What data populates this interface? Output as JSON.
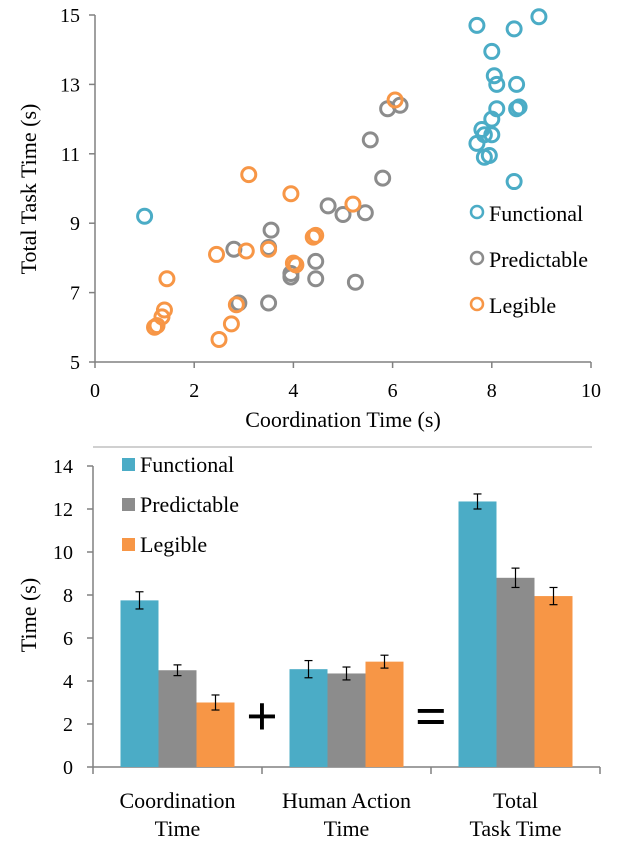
{
  "colors": {
    "functional": "#4bacc6",
    "predictable": "#8c8c8c",
    "legible": "#f79646",
    "axis": "#808080",
    "error_bar": "#000000"
  },
  "chart_data": [
    {
      "type": "scatter",
      "title": "",
      "xlabel": "Coordination Time (s)",
      "ylabel": "Total Task Time (s)",
      "xlim": [
        0,
        10
      ],
      "ylim": [
        5,
        15
      ],
      "xticks": [
        "0",
        "2",
        "4",
        "6",
        "8",
        "10"
      ],
      "yticks": [
        "5",
        "7",
        "9",
        "11",
        "13",
        "15"
      ],
      "grid": false,
      "legend_position": "right",
      "series": [
        {
          "name": "Functional",
          "color_key": "functional",
          "points": [
            [
              1.0,
              9.2
            ],
            [
              7.7,
              14.7
            ],
            [
              8.45,
              14.6
            ],
            [
              8.95,
              14.95
            ],
            [
              8.0,
              13.95
            ],
            [
              8.05,
              13.25
            ],
            [
              8.1,
              13.0
            ],
            [
              8.5,
              13.0
            ],
            [
              8.55,
              12.35
            ],
            [
              8.5,
              12.3
            ],
            [
              8.1,
              12.3
            ],
            [
              8.0,
              12.0
            ],
            [
              7.8,
              11.7
            ],
            [
              8.0,
              11.55
            ],
            [
              7.85,
              11.55
            ],
            [
              7.7,
              11.3
            ],
            [
              7.85,
              10.9
            ],
            [
              7.95,
              10.95
            ],
            [
              8.45,
              10.2
            ]
          ]
        },
        {
          "name": "Predictable",
          "color_key": "predictable",
          "points": [
            [
              2.9,
              6.7
            ],
            [
              2.8,
              8.25
            ],
            [
              3.5,
              8.3
            ],
            [
              3.55,
              8.8
            ],
            [
              3.5,
              6.7
            ],
            [
              3.95,
              7.55
            ],
            [
              3.95,
              7.45
            ],
            [
              4.45,
              7.9
            ],
            [
              4.45,
              7.4
            ],
            [
              4.7,
              9.5
            ],
            [
              5.0,
              9.25
            ],
            [
              5.25,
              7.3
            ],
            [
              5.45,
              9.3
            ],
            [
              5.55,
              11.4
            ],
            [
              5.8,
              10.3
            ],
            [
              5.9,
              12.3
            ],
            [
              6.15,
              12.4
            ]
          ]
        },
        {
          "name": "Legible",
          "color_key": "legible",
          "points": [
            [
              1.2,
              6.0
            ],
            [
              1.25,
              6.05
            ],
            [
              1.35,
              6.3
            ],
            [
              1.4,
              6.5
            ],
            [
              1.45,
              7.4
            ],
            [
              2.5,
              5.65
            ],
            [
              2.45,
              8.1
            ],
            [
              2.75,
              6.1
            ],
            [
              2.85,
              6.65
            ],
            [
              3.05,
              8.2
            ],
            [
              3.1,
              10.4
            ],
            [
              3.5,
              8.25
            ],
            [
              3.95,
              9.85
            ],
            [
              4.0,
              7.85
            ],
            [
              4.05,
              7.8
            ],
            [
              4.4,
              8.6
            ],
            [
              4.45,
              8.65
            ],
            [
              5.2,
              9.55
            ],
            [
              6.05,
              12.55
            ]
          ]
        }
      ]
    },
    {
      "type": "bar",
      "title": "",
      "xlabel": "",
      "ylabel": "Time (s)",
      "ylim": [
        0,
        14
      ],
      "yticks": [
        "0",
        "2",
        "4",
        "6",
        "8",
        "10",
        "12",
        "14"
      ],
      "grid": false,
      "legend_position": "top-left",
      "categories": [
        [
          "Coordination",
          "Time"
        ],
        [
          "Human Action",
          "Time"
        ],
        [
          "Total",
          "Task Time"
        ]
      ],
      "operators": [
        "+",
        "="
      ],
      "series": [
        {
          "name": "Functional",
          "color_key": "functional",
          "values": [
            7.75,
            4.55,
            12.35
          ],
          "errors": [
            0.4,
            0.4,
            0.35
          ]
        },
        {
          "name": "Predictable",
          "color_key": "predictable",
          "values": [
            4.5,
            4.35,
            8.8
          ],
          "errors": [
            0.25,
            0.3,
            0.45
          ]
        },
        {
          "name": "Legible",
          "color_key": "legible",
          "values": [
            3.0,
            4.9,
            7.95
          ],
          "errors": [
            0.35,
            0.3,
            0.4
          ]
        }
      ]
    }
  ]
}
